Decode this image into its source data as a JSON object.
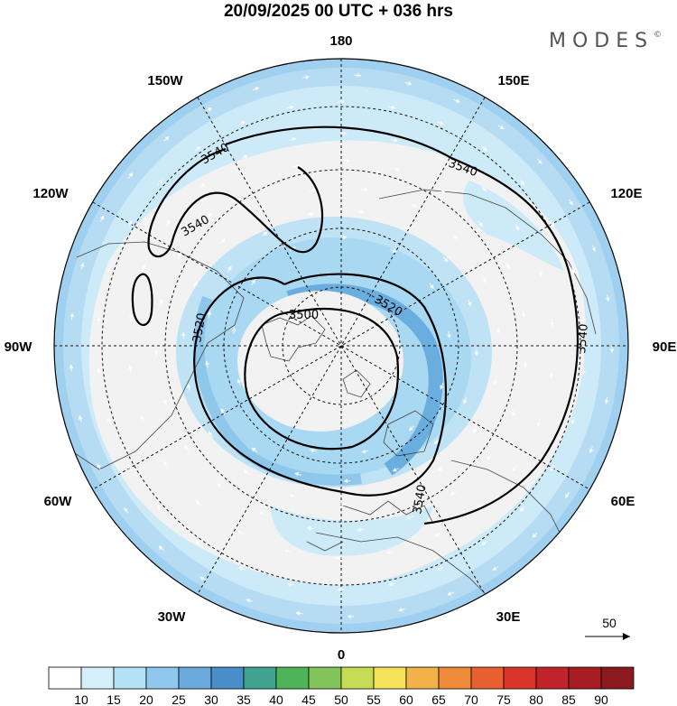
{
  "title": "20/09/2025  00 UTC  + 036 hrs",
  "brand": {
    "name": "MODES",
    "mark": "©"
  },
  "longitude_labels": [
    {
      "text": "180",
      "key": "top"
    },
    {
      "text": "150E",
      "key": "ne1"
    },
    {
      "text": "120E",
      "key": "ne2"
    },
    {
      "text": "90E",
      "key": "e"
    },
    {
      "text": "60E",
      "key": "se2"
    },
    {
      "text": "30E",
      "key": "se1"
    },
    {
      "text": "0",
      "key": "bottom"
    },
    {
      "text": "30W",
      "key": "sw1"
    },
    {
      "text": "60W",
      "key": "sw2"
    },
    {
      "text": "90W",
      "key": "w"
    },
    {
      "text": "120W",
      "key": "nw2"
    },
    {
      "text": "150W",
      "key": "nw1"
    }
  ],
  "contour_labels": [
    {
      "text": "3540",
      "key": "c1"
    },
    {
      "text": "3540",
      "key": "c2"
    },
    {
      "text": "3540",
      "key": "c3"
    },
    {
      "text": "3540",
      "key": "c4"
    },
    {
      "text": "3540",
      "key": "c5"
    },
    {
      "text": "3520",
      "key": "c6"
    },
    {
      "text": "3520",
      "key": "c7"
    },
    {
      "text": "3500",
      "key": "c8"
    }
  ],
  "vector_reference": {
    "value": "50"
  },
  "colorbar": {
    "labels": [
      "10",
      "15",
      "20",
      "25",
      "30",
      "35",
      "40",
      "45",
      "50",
      "55",
      "60",
      "65",
      "70",
      "75",
      "80",
      "85",
      "90"
    ],
    "colors": [
      "#ffffff",
      "#d6f0fb",
      "#b4e1f6",
      "#8fc8ec",
      "#69a9dc",
      "#4a8ec9",
      "#3fa38f",
      "#4fb35a",
      "#82c45a",
      "#c4dc56",
      "#f5e25a",
      "#f1b24a",
      "#ee8a3a",
      "#e8602f",
      "#d9352a",
      "#c0242a",
      "#a81d24",
      "#8a1a1e"
    ]
  },
  "colors": {
    "land": "#f2f2f2",
    "contour": "#000000",
    "wind_band_light": "#bfe3f5",
    "wind_band_mid": "#8ec7ea",
    "wind_band_strong": "#6aaedf"
  }
}
